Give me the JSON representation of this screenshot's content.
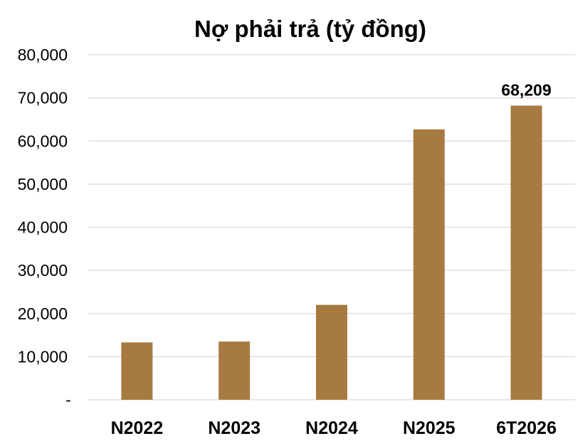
{
  "chart_data": {
    "type": "bar",
    "title": "Nợ phải trả (tỷ đồng)",
    "categories": [
      "N2022",
      "N2023",
      "N2024",
      "N2025",
      "6T2026"
    ],
    "values": [
      13300,
      13500,
      22000,
      62700,
      68209
    ],
    "data_labels": [
      "",
      "",
      "",
      "",
      "68,209"
    ],
    "ylim": [
      0,
      80000
    ],
    "yticks": [
      0,
      10000,
      20000,
      30000,
      40000,
      50000,
      60000,
      70000,
      80000
    ],
    "ytick_labels": [
      "-",
      "10,000",
      "20,000",
      "30,000",
      "40,000",
      "50,000",
      "60,000",
      "70,000",
      "80,000"
    ],
    "bar_color": "#A67A40",
    "grid": true,
    "legend": "none"
  }
}
